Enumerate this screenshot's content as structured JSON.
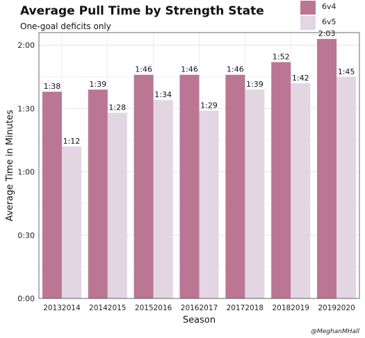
{
  "title": "Average Pull Time by Strength State",
  "subtitle": "One-goal deficits only",
  "credit": "@MeghanMHall",
  "chart_data": {
    "type": "bar",
    "title": "Average Pull Time by Strength State",
    "subtitle": "One-goal deficits only",
    "xlabel": "Season",
    "ylabel": "Average Time in Minutes",
    "categories": [
      "20132014",
      "20142015",
      "20152016",
      "20162017",
      "20172018",
      "20182019",
      "20192020"
    ],
    "ylim": [
      0,
      2.1
    ],
    "yticks": [
      0,
      0.5,
      1.0,
      1.5,
      2.0
    ],
    "ytick_labels": [
      "0:00",
      "0:30",
      "1:00",
      "1:30",
      "2:00"
    ],
    "legend_position": "top-right",
    "grid": true,
    "series": [
      {
        "name": "6v4",
        "color": "#bb7693",
        "values": [
          1.633,
          1.65,
          1.767,
          1.767,
          1.767,
          1.867,
          2.05
        ],
        "labels": [
          "1:38",
          "1:39",
          "1:46",
          "1:46",
          "1:46",
          "1:52",
          "2:03"
        ]
      },
      {
        "name": "6v5",
        "color": "#e1d6e1",
        "values": [
          1.2,
          1.467,
          1.567,
          1.483,
          1.65,
          1.7,
          1.75
        ],
        "labels": [
          "1:12",
          "1:28",
          "1:34",
          "1:29",
          "1:39",
          "1:42",
          "1:45"
        ]
      }
    ]
  }
}
